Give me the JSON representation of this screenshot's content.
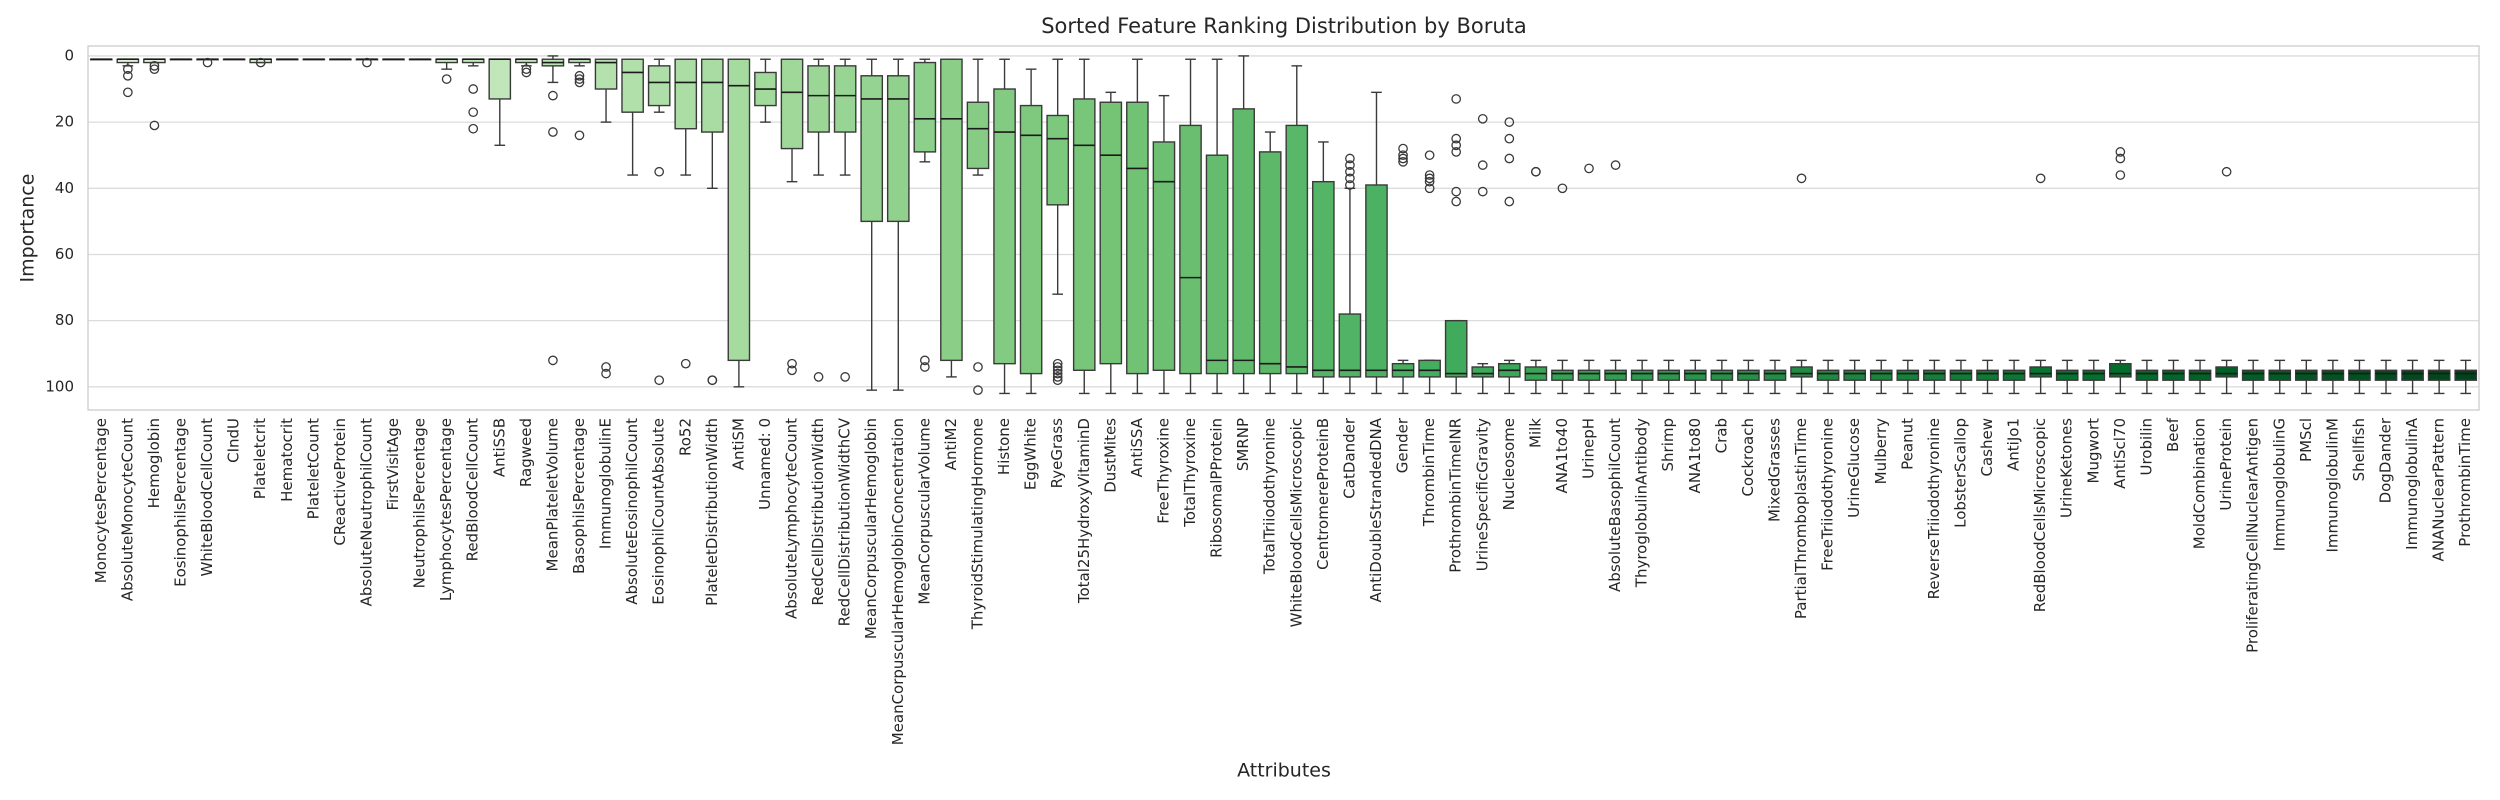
{
  "chart_data": {
    "type": "box",
    "title": "Sorted Feature Ranking Distribution by Boruta",
    "x_label": "Attributes",
    "y_label": "Importance",
    "ylim": [
      -3,
      107
    ],
    "y_inverted": true,
    "yticks": [
      0,
      20,
      40,
      60,
      80,
      100
    ],
    "grid": true,
    "palette": [
      "#e5f5e0",
      "#c7e9c0",
      "#a1d99b",
      "#74c476",
      "#41ab5d",
      "#238b45",
      "#006d2c",
      "#00441b"
    ],
    "categories": [
      "MonocytesPercentage",
      "AbsoluteMonocyteCount",
      "Hemoglobin",
      "EosinophilsPercentage",
      "WhiteBloodCellCount",
      "CIndU",
      "Plateletcrit",
      "Hematocrit",
      "PlateletCount",
      "CReactiveProtein",
      "AbsoluteNeutrophilCount",
      "FirstVisitAge",
      "NeutrophilsPercentage",
      "LymphocytesPercentage",
      "RedBloodCellCount",
      "AntiSSB",
      "Ragweed",
      "MeanPlateletVolume",
      "BasophilsPercentage",
      "ImmunoglobulinE",
      "AbsoluteEosinophilCount",
      "EosinophilCountAbsolute",
      "Ro52",
      "PlateletDistributionWidth",
      "AntiSM",
      "Unnamed: 0",
      "AbsoluteLymphocyteCount",
      "RedCellDistributionWidth",
      "RedCellDistributionWidthCV",
      "MeanCorpuscularHemoglobin",
      "MeanCorpuscularHemoglobinConcentration",
      "MeanCorpuscularVolume",
      "AntiM2",
      "ThyroidStimulatingHormone",
      "Histone",
      "EggWhite",
      "RyeGrass",
      "Total25HydroxyVitaminD",
      "DustMites",
      "AntiSSA",
      "FreeThyroxine",
      "TotalThyroxine",
      "RibosomalPProtein",
      "SMRNP",
      "TotalTriiodothyronine",
      "WhiteBloodCellsMicroscopic",
      "CentromereProteinB",
      "CatDander",
      "AntiDoubleStrandedDNA",
      "Gender",
      "ThrombinTime",
      "ProthrombinTimeINR",
      "UrineSpecificGravity",
      "Nucleosome",
      "Milk",
      "ANA1to40",
      "UrinepH",
      "AbsoluteBasophilCount",
      "ThyroglobulinAntibody",
      "Shrimp",
      "ANA1to80",
      "Crab",
      "Cockroach",
      "MixedGrasses",
      "PartialThromboplastinTime",
      "FreeTriiodothyronine",
      "UrineGlucose",
      "Mulberry",
      "Peanut",
      "ReverseTriiodothyronine",
      "LobsterScallop",
      "Cashew",
      "AntiJo1",
      "RedBloodCellsMicroscopic",
      "UrineKetones",
      "Mugwort",
      "AntiScl70",
      "Urobilin",
      "Beef",
      "MoldCombination",
      "UrineProtein",
      "ProliferatingCellNuclearAntigen",
      "ImmunoglobulinG",
      "PMScl",
      "ImmunoglobulinM",
      "Shellfish",
      "DogDander",
      "ImmunoglobulinA",
      "ANANuclearPattern",
      "ProthrombinTime"
    ],
    "stats": [
      [
        1,
        1,
        1,
        1,
        1
      ],
      [
        1,
        1,
        1,
        2,
        3
      ],
      [
        1,
        1,
        1,
        2,
        2
      ],
      [
        1,
        1,
        1,
        1,
        1
      ],
      [
        1,
        1,
        1,
        1,
        1
      ],
      [
        1,
        1,
        1,
        1,
        1
      ],
      [
        1,
        1,
        1,
        2,
        2
      ],
      [
        1,
        1,
        1,
        1,
        1
      ],
      [
        1,
        1,
        1,
        1,
        1
      ],
      [
        1,
        1,
        1,
        1,
        1
      ],
      [
        1,
        1,
        1,
        1,
        1
      ],
      [
        1,
        1,
        1,
        1,
        1
      ],
      [
        1,
        1,
        1,
        1,
        1
      ],
      [
        1,
        1,
        1,
        2,
        4
      ],
      [
        1,
        1,
        1,
        2,
        3
      ],
      [
        1,
        1,
        1,
        13,
        27
      ],
      [
        1,
        1,
        1,
        2,
        3
      ],
      [
        0,
        1,
        2,
        3,
        8
      ],
      [
        1,
        1,
        1,
        2,
        3
      ],
      [
        1,
        1,
        2,
        10,
        20
      ],
      [
        1,
        1,
        5,
        17,
        36
      ],
      [
        1,
        3,
        8,
        15,
        17
      ],
      [
        1,
        1,
        8,
        22,
        36
      ],
      [
        1,
        1,
        8,
        23,
        40
      ],
      [
        1,
        1,
        9,
        92,
        100
      ],
      [
        1,
        5,
        10,
        15,
        20
      ],
      [
        1,
        1,
        11,
        28,
        38
      ],
      [
        1,
        3,
        12,
        23,
        36
      ],
      [
        1,
        3,
        12,
        23,
        36
      ],
      [
        1,
        6,
        13,
        50,
        101
      ],
      [
        1,
        6,
        13,
        50,
        101
      ],
      [
        1,
        2,
        19,
        29,
        32
      ],
      [
        1,
        1,
        19,
        92,
        97
      ],
      [
        1,
        14,
        22,
        34,
        36
      ],
      [
        1,
        10,
        23,
        93,
        102
      ],
      [
        4,
        15,
        24,
        96,
        102
      ],
      [
        1,
        18,
        25,
        45,
        72
      ],
      [
        1,
        13,
        27,
        95,
        102
      ],
      [
        11,
        14,
        30,
        93,
        102
      ],
      [
        1,
        14,
        34,
        96,
        102
      ],
      [
        12,
        26,
        38,
        95,
        102
      ],
      [
        1,
        21,
        67,
        96,
        102
      ],
      [
        1,
        30,
        92,
        96,
        102
      ],
      [
        0,
        16,
        92,
        96,
        102
      ],
      [
        23,
        29,
        93,
        96,
        102
      ],
      [
        3,
        21,
        94,
        96,
        102
      ],
      [
        26,
        38,
        95,
        97,
        102
      ],
      [
        40,
        78,
        95,
        97,
        102
      ],
      [
        11,
        39,
        95,
        97,
        102
      ],
      [
        92,
        93,
        95,
        97,
        102
      ],
      [
        92,
        92,
        95,
        97,
        102
      ],
      [
        80,
        80,
        96,
        97,
        102
      ],
      [
        93,
        94,
        96,
        97,
        102
      ],
      [
        92,
        93,
        95,
        97,
        102
      ],
      [
        92,
        94,
        96,
        98,
        102
      ],
      [
        92,
        95,
        96,
        98,
        102
      ],
      [
        92,
        95,
        96,
        98,
        102
      ],
      [
        92,
        95,
        96,
        98,
        102
      ],
      [
        92,
        95,
        96,
        98,
        102
      ],
      [
        92,
        95,
        96,
        98,
        102
      ],
      [
        92,
        95,
        96,
        98,
        102
      ],
      [
        92,
        95,
        96,
        98,
        102
      ],
      [
        92,
        95,
        96,
        98,
        102
      ],
      [
        92,
        95,
        96,
        98,
        102
      ],
      [
        92,
        94,
        96,
        97,
        102
      ],
      [
        92,
        95,
        96,
        98,
        102
      ],
      [
        92,
        95,
        96,
        98,
        102
      ],
      [
        92,
        95,
        96,
        98,
        102
      ],
      [
        92,
        95,
        96,
        98,
        102
      ],
      [
        92,
        95,
        96,
        98,
        102
      ],
      [
        92,
        95,
        96,
        98,
        102
      ],
      [
        92,
        95,
        96,
        98,
        102
      ],
      [
        92,
        95,
        96,
        98,
        102
      ],
      [
        92,
        94,
        96,
        97,
        102
      ],
      [
        92,
        95,
        96,
        98,
        102
      ],
      [
        92,
        95,
        96,
        98,
        102
      ],
      [
        92,
        93,
        96,
        97,
        102
      ],
      [
        92,
        95,
        96,
        98,
        102
      ],
      [
        92,
        95,
        96,
        98,
        102
      ],
      [
        92,
        95,
        96,
        98,
        102
      ],
      [
        92,
        94,
        96,
        97,
        102
      ],
      [
        92,
        95,
        96,
        98,
        102
      ],
      [
        92,
        95,
        96,
        98,
        102
      ],
      [
        92,
        95,
        96,
        98,
        102
      ],
      [
        92,
        95,
        96,
        98,
        102
      ],
      [
        92,
        95,
        96,
        98,
        102
      ],
      [
        92,
        95,
        96,
        98,
        102
      ],
      [
        92,
        95,
        96,
        98,
        102
      ],
      [
        92,
        95,
        96,
        98,
        102
      ],
      [
        92,
        95,
        96,
        98,
        102
      ]
    ],
    "outliers": [
      [],
      [
        4,
        6,
        11
      ],
      [
        3,
        4,
        21
      ],
      [],
      [
        2
      ],
      [],
      [
        2
      ],
      [],
      [],
      [],
      [
        2
      ],
      [],
      [],
      [
        7
      ],
      [
        10,
        17,
        22
      ],
      [],
      [
        4,
        5
      ],
      [
        12,
        23,
        92
      ],
      [
        6,
        7,
        8,
        24
      ],
      [
        94,
        96
      ],
      [],
      [
        35,
        98
      ],
      [
        93
      ],
      [
        98,
        98
      ],
      [],
      [],
      [
        93,
        95
      ],
      [
        97
      ],
      [
        97
      ],
      [],
      [],
      [
        92,
        94
      ],
      [],
      [
        94,
        101
      ],
      [],
      [],
      [
        93,
        94,
        95,
        96,
        97,
        98
      ],
      [],
      [],
      [],
      [],
      [],
      [],
      [],
      [],
      [],
      [],
      [
        31,
        33,
        35,
        37,
        39
      ],
      [],
      [
        28,
        30,
        31,
        32
      ],
      [
        30,
        36,
        37,
        38,
        40
      ],
      [
        13,
        25,
        27,
        29,
        41,
        44
      ],
      [
        19,
        33,
        41
      ],
      [
        20,
        25,
        31,
        44
      ],
      [
        35,
        35
      ],
      [
        40
      ],
      [
        34
      ],
      [
        33
      ],
      [],
      [],
      [],
      [],
      [],
      [],
      [
        37
      ],
      [],
      [],
      [],
      [],
      [],
      [],
      [],
      [],
      [
        37
      ],
      [],
      [],
      [
        29,
        31,
        36
      ],
      [],
      [],
      [],
      [
        35
      ],
      [],
      [],
      [],
      [],
      [],
      [],
      [],
      [],
      []
    ]
  }
}
